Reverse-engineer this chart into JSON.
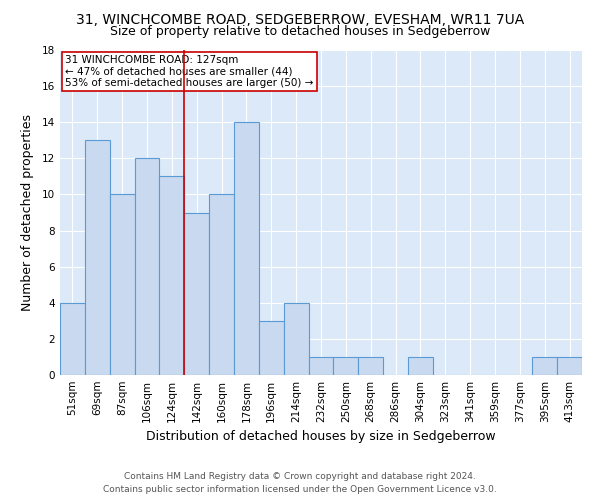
{
  "title": "31, WINCHCOMBE ROAD, SEDGEBERROW, EVESHAM, WR11 7UA",
  "subtitle": "Size of property relative to detached houses in Sedgeberrow",
  "xlabel": "Distribution of detached houses by size in Sedgeberrow",
  "ylabel": "Number of detached properties",
  "categories": [
    "51sqm",
    "69sqm",
    "87sqm",
    "106sqm",
    "124sqm",
    "142sqm",
    "160sqm",
    "178sqm",
    "196sqm",
    "214sqm",
    "232sqm",
    "250sqm",
    "268sqm",
    "286sqm",
    "304sqm",
    "323sqm",
    "341sqm",
    "359sqm",
    "377sqm",
    "395sqm",
    "413sqm"
  ],
  "values": [
    4,
    13,
    10,
    12,
    11,
    9,
    10,
    14,
    3,
    4,
    1,
    1,
    1,
    0,
    1,
    0,
    0,
    0,
    0,
    1,
    1
  ],
  "bar_color": "#c9d9f0",
  "bar_edge_color": "#5b9bd5",
  "vline_x": 4.5,
  "vline_color": "#cc0000",
  "annotation_text": "31 WINCHCOMBE ROAD: 127sqm\n← 47% of detached houses are smaller (44)\n53% of semi-detached houses are larger (50) →",
  "annotation_box_color": "white",
  "annotation_box_edge_color": "#cc0000",
  "ylim": [
    0,
    18
  ],
  "yticks": [
    0,
    2,
    4,
    6,
    8,
    10,
    12,
    14,
    16,
    18
  ],
  "bg_color": "#dce9f8",
  "grid_color": "white",
  "footer_line1": "Contains HM Land Registry data © Crown copyright and database right 2024.",
  "footer_line2": "Contains public sector information licensed under the Open Government Licence v3.0.",
  "title_fontsize": 10,
  "subtitle_fontsize": 9,
  "tick_fontsize": 7.5,
  "label_fontsize": 9,
  "footer_fontsize": 6.5
}
